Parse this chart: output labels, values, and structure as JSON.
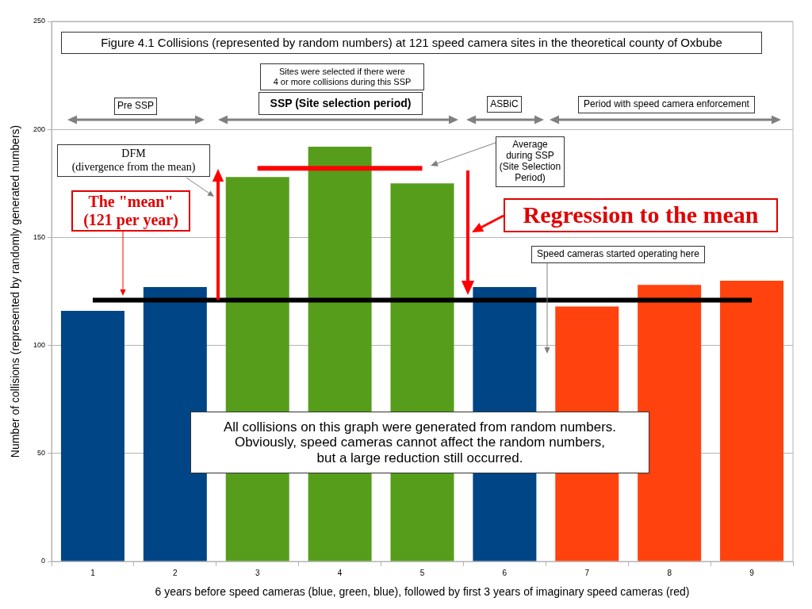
{
  "chart_data": {
    "type": "bar",
    "title": "Figure 4.1 Collisions (represented by random numbers) at 121 speed camera sites in the theoretical county of Oxbube",
    "xlabel": "6 years before speed cameras (blue, green, blue), followed by first 3 years of imaginary speed cameras (red)",
    "ylabel": "Number of collisions (represented by randomly generated numbers)",
    "categories": [
      "1",
      "2",
      "3",
      "4",
      "5",
      "6",
      "7",
      "8",
      "9"
    ],
    "series": [
      {
        "values": [
          116,
          127,
          178,
          192,
          175,
          127,
          118,
          128,
          130
        ],
        "colors": [
          "#004586",
          "#004586",
          "#579d1c",
          "#579d1c",
          "#579d1c",
          "#004586",
          "#ff420e",
          "#ff420e",
          "#ff420e"
        ]
      },
      {
        "type": "line",
        "color": "#000000",
        "values": [
          121,
          121,
          121,
          121,
          121,
          121,
          121,
          121,
          121
        ]
      },
      {
        "type": "line",
        "color": "#ff0000",
        "values": [
          null,
          null,
          182,
          182,
          182,
          null,
          null,
          null,
          null
        ]
      }
    ],
    "ylim": [
      0,
      250
    ],
    "yticks": [
      0,
      50,
      100,
      150,
      200,
      250
    ],
    "grid": "y",
    "legend": false,
    "marker": "none",
    "annotations": [
      "Sites were selected if there were\n4 or more collisions during this SSP",
      "SSP (Site selection period)",
      "Pre SSP",
      "ASBiC",
      "Period with speed camera enforcement",
      "DFM\n(divergence from the mean)",
      "The \"mean\"\n(121 per year)",
      "Average\nduring SSP\n(Site Selection\nPeriod)",
      "Regression to the mean",
      "Speed cameras started operating here",
      "All collisions on this graph were generated from random numbers.\nObviously, speed cameras cannot affect the random numbers,\nbut a large reduction still occurred."
    ]
  }
}
